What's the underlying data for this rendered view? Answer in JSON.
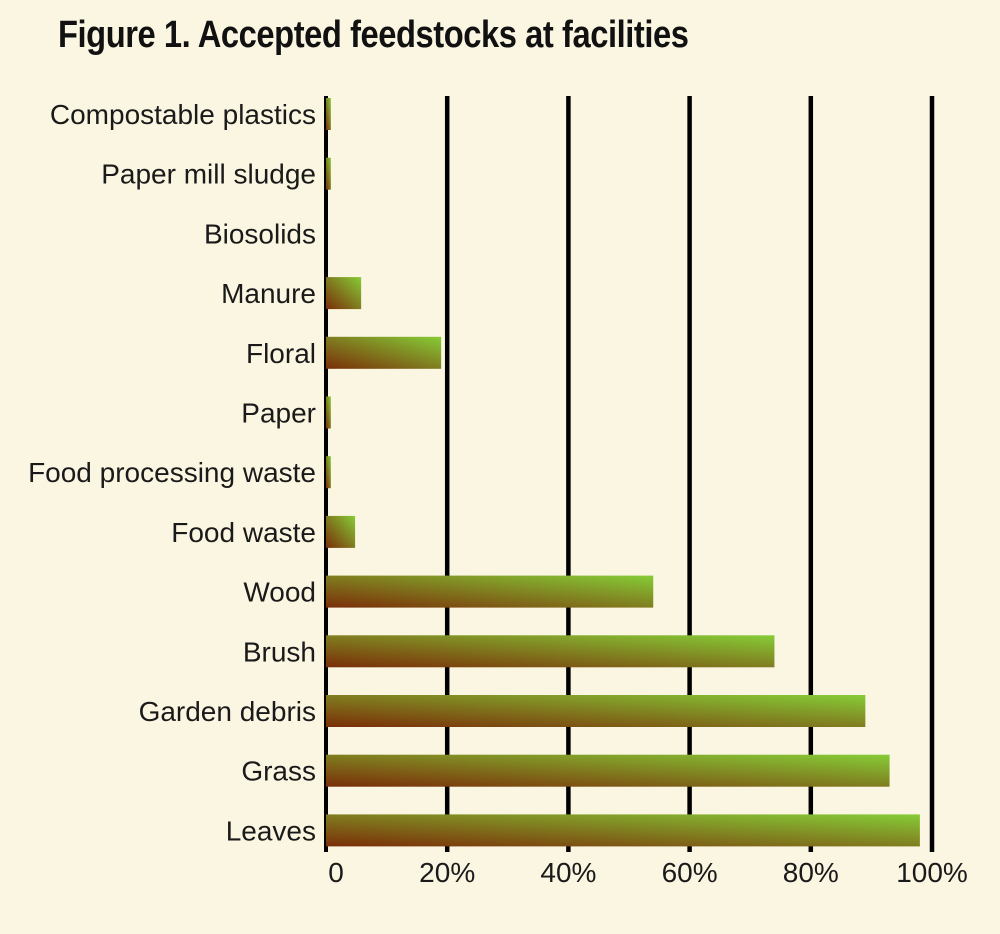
{
  "chart_data": {
    "type": "bar",
    "orientation": "horizontal",
    "title": "Figure 1. Accepted feedstocks at facilities",
    "categories": [
      "Compostable plastics",
      "Paper mill sludge",
      "Biosolids",
      "Manure",
      "Floral",
      "Paper",
      "Food processing waste",
      "Food waste",
      "Wood",
      "Brush",
      "Garden debris",
      "Grass",
      "Leaves"
    ],
    "values": [
      0.8,
      0.8,
      0,
      5.8,
      19,
      0.8,
      0.8,
      4.8,
      54,
      74,
      89,
      93,
      98
    ],
    "xlim": [
      0,
      100
    ],
    "x_ticks": [
      0,
      20,
      40,
      60,
      80,
      100
    ],
    "x_tick_labels": [
      "0",
      "20%",
      "40%",
      "60%",
      "80%",
      "100%"
    ],
    "xlabel": "",
    "ylabel": "",
    "grid": "vertical",
    "bar_gradient": [
      "#7a2e08",
      "#86cc37"
    ],
    "background": "#fbf6e1"
  }
}
